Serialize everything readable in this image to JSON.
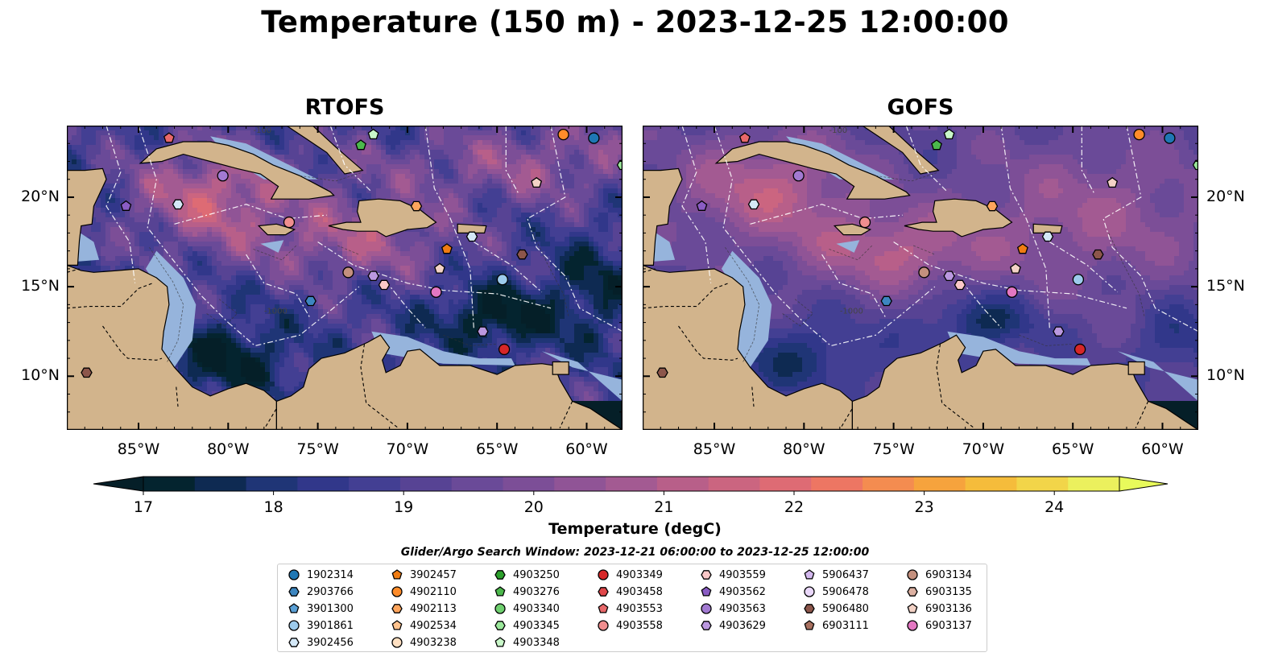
{
  "title": "Temperature (150 m) - 2023-12-25 12:00:00",
  "panels": [
    {
      "name": "RTOFS",
      "field": "rtofs"
    },
    {
      "name": "GOFS",
      "field": "gofs"
    }
  ],
  "map": {
    "lon_range": [
      -89,
      -58
    ],
    "lat_range": [
      7,
      24
    ],
    "lon_ticks": [
      -85,
      -80,
      -75,
      -70,
      -65,
      -60
    ],
    "lon_tick_labels": [
      "85°W",
      "80°W",
      "75°W",
      "70°W",
      "65°W",
      "60°W"
    ],
    "lat_ticks": [
      10,
      15,
      20
    ],
    "lat_tick_labels": [
      "10°N",
      "15°N",
      "20°N"
    ],
    "land_color": "#d2b48c",
    "shelf_color": "#96b4dc",
    "contour_labels": [
      "-100",
      "-1000"
    ]
  },
  "colorbar": {
    "label": "Temperature (degC)",
    "min": 17,
    "max": 24.5,
    "step": 0.5,
    "ticks": [
      17,
      18,
      19,
      20,
      21,
      22,
      23,
      24
    ],
    "colors": [
      "#04242f",
      "#0e2a52",
      "#1f3576",
      "#31378a",
      "#433f93",
      "#574394",
      "#6a4a98",
      "#7c4e97",
      "#905496",
      "#a35a92",
      "#b85f89",
      "#cb6580",
      "#de6b74",
      "#ed7663",
      "#f48c50",
      "#f6a33d",
      "#f5bc3b",
      "#f2d549",
      "#ebf05d"
    ],
    "over_color": "#e8fa5b",
    "under_color": "#051f28"
  },
  "legend": {
    "title": "Glider/Argo Search Window: 2023-12-21 06:00:00 to 2023-12-25 12:00:00",
    "columns": [
      [
        {
          "label": "1902314",
          "color": "#1f77b4",
          "marker": "circle"
        },
        {
          "label": "2903766",
          "color": "#3d86c0",
          "marker": "hexagon"
        },
        {
          "label": "3901300",
          "color": "#5aa0d6",
          "marker": "pentagon"
        },
        {
          "label": "3901861",
          "color": "#9dcbec",
          "marker": "circle"
        },
        {
          "label": "3902456",
          "color": "#d4e8f7",
          "marker": "hexagon"
        }
      ],
      [
        {
          "label": "3902457",
          "color": "#f07c12",
          "marker": "pentagon"
        },
        {
          "label": "4902110",
          "color": "#ff8c2a",
          "marker": "circle"
        },
        {
          "label": "4902113",
          "color": "#ffa55c",
          "marker": "hexagon"
        },
        {
          "label": "4902534",
          "color": "#ffc38e",
          "marker": "pentagon"
        },
        {
          "label": "4903238",
          "color": "#ffe0c2",
          "marker": "circle"
        }
      ],
      [
        {
          "label": "4903250",
          "color": "#2ca02c",
          "marker": "hexagon"
        },
        {
          "label": "4903276",
          "color": "#4cb84c",
          "marker": "pentagon"
        },
        {
          "label": "4903340",
          "color": "#6fd06f",
          "marker": "circle"
        },
        {
          "label": "4903345",
          "color": "#9be89b",
          "marker": "hexagon"
        },
        {
          "label": "4903348",
          "color": "#c9f7c9",
          "marker": "pentagon"
        }
      ],
      [
        {
          "label": "4903349",
          "color": "#d62728",
          "marker": "circle"
        },
        {
          "label": "4903458",
          "color": "#e0474a",
          "marker": "hexagon"
        },
        {
          "label": "4903553",
          "color": "#e8686a",
          "marker": "pentagon"
        },
        {
          "label": "4903558",
          "color": "#f08e8f",
          "marker": "circle"
        }
      ],
      [
        {
          "label": "4903559",
          "color": "#fbc8c8",
          "marker": "hexagon"
        },
        {
          "label": "4903562",
          "color": "#8a5cc4",
          "marker": "pentagon"
        },
        {
          "label": "4903563",
          "color": "#a27ad2",
          "marker": "circle"
        },
        {
          "label": "4903629",
          "color": "#bb98e0",
          "marker": "hexagon"
        }
      ],
      [
        {
          "label": "5906437",
          "color": "#d3b8ee",
          "marker": "pentagon"
        },
        {
          "label": "5906478",
          "color": "#ead8fa",
          "marker": "circle"
        },
        {
          "label": "5906480",
          "color": "#8c564b",
          "marker": "hexagon"
        },
        {
          "label": "6903111",
          "color": "#a8705f",
          "marker": "pentagon"
        }
      ],
      [
        {
          "label": "6903134",
          "color": "#c4907e",
          "marker": "circle"
        },
        {
          "label": "6903135",
          "color": "#ddb1a2",
          "marker": "hexagon"
        },
        {
          "label": "6903136",
          "color": "#f3d2c6",
          "marker": "pentagon"
        },
        {
          "label": "6903137",
          "color": "#e377c2",
          "marker": "circle"
        }
      ]
    ]
  },
  "floats": [
    {
      "label": "1902314",
      "lon": -59.6,
      "lat": 23.3
    },
    {
      "label": "4902110",
      "lon": -61.3,
      "lat": 23.5
    },
    {
      "label": "4903345",
      "lon": -58.0,
      "lat": 21.8
    },
    {
      "label": "4903348",
      "lon": -71.9,
      "lat": 23.5
    },
    {
      "label": "4903276",
      "lon": -72.6,
      "lat": 22.9
    },
    {
      "label": "4903553",
      "lon": -83.3,
      "lat": 23.3
    },
    {
      "label": "4903563",
      "lon": -80.3,
      "lat": 21.2
    },
    {
      "label": "6903136",
      "lon": -62.8,
      "lat": 20.8
    },
    {
      "label": "4903562",
      "lon": -85.7,
      "lat": 19.5
    },
    {
      "label": "3902456",
      "lon": -82.8,
      "lat": 19.6
    },
    {
      "label": "4903558",
      "lon": -76.6,
      "lat": 18.6
    },
    {
      "label": "4902113",
      "lon": -69.5,
      "lat": 19.5
    },
    {
      "label": "3902456",
      "lon": -66.4,
      "lat": 17.8
    },
    {
      "label": "3902457",
      "lon": -67.8,
      "lat": 17.1
    },
    {
      "label": "5906480",
      "lon": -63.6,
      "lat": 16.8
    },
    {
      "label": "6903134",
      "lon": -73.3,
      "lat": 15.8
    },
    {
      "label": "4903629",
      "lon": -71.9,
      "lat": 15.6
    },
    {
      "label": "4903559",
      "lon": -71.3,
      "lat": 15.1
    },
    {
      "label": "6903136",
      "lon": -68.2,
      "lat": 16.0
    },
    {
      "label": "6903137",
      "lon": -68.4,
      "lat": 14.7
    },
    {
      "label": "3901861",
      "lon": -64.7,
      "lat": 15.4
    },
    {
      "label": "2903766",
      "lon": -75.4,
      "lat": 14.2
    },
    {
      "label": "4903629",
      "lon": -65.8,
      "lat": 12.5
    },
    {
      "label": "4903349",
      "lon": -64.6,
      "lat": 11.5
    },
    {
      "label": "5906480",
      "lon": -87.9,
      "lat": 10.2
    }
  ]
}
